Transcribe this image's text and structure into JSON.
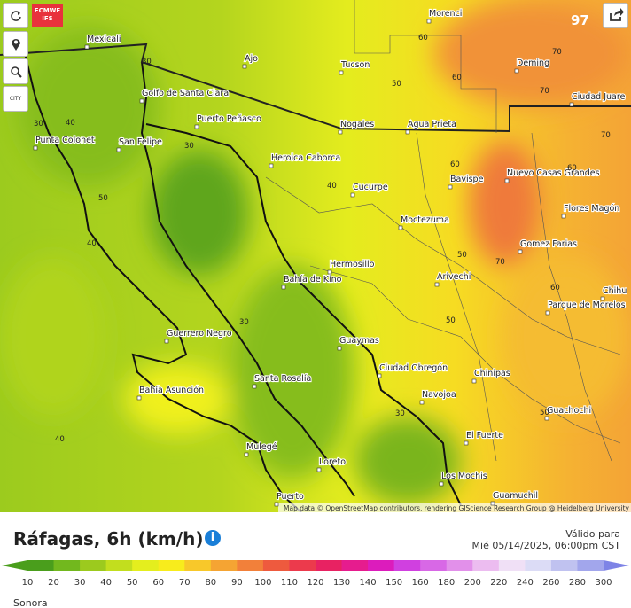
{
  "buttons": {
    "model": "ECMWF IFS",
    "city": "CITY"
  },
  "map": {
    "cities": [
      "Mexicali",
      "Tucson",
      "Ajo",
      "Morenci",
      "Deming",
      "Ciudad Juare",
      "Golfo de Santa Clara",
      "Puerto Peñasco",
      "Nogales",
      "Agua Prieta",
      "Punta Colonet",
      "San Felipe",
      "Heroica Caborca",
      "Bavispe",
      "Nuevo Casas Grandes",
      "Cucurpe",
      "Flores Magón",
      "Moctezuma",
      "Gomez Farias",
      "Hermosillo",
      "Bahía de Kino",
      "Arivechi",
      "Parque de Morelos",
      "Chihu",
      "Guerrero Negro",
      "Guaymas",
      "Ciudad Obregón",
      "Chinipas",
      "Bahía Asunción",
      "Santa Rosalía",
      "Navojoa",
      "Guachochi",
      "El Fuerte",
      "Mulegé",
      "Loreto",
      "Los Mochis",
      "Guamuchil",
      "Puerto"
    ],
    "contour_labels": [
      30,
      40,
      50,
      40,
      30,
      30,
      40,
      50,
      60,
      60,
      70,
      70,
      70,
      60,
      60,
      50,
      70,
      60,
      50,
      30,
      50,
      40,
      30
    ],
    "max_value": 97,
    "attribution": "Map data © OpenStreetMap contributors, rendering GIScience Research Group @ Heidelberg University"
  },
  "legend": {
    "title": "Ráfagas, 6h (km/h)",
    "valid_label": "Válido para",
    "valid_time": "Mié 05/14/2025, 06:00pm CST",
    "region": "Sonora",
    "stops": [
      {
        "value": 10,
        "color": "#4a9e1c"
      },
      {
        "value": 20,
        "color": "#72b81e"
      },
      {
        "value": 30,
        "color": "#9cca1e"
      },
      {
        "value": 40,
        "color": "#c2de1e"
      },
      {
        "value": 50,
        "color": "#e4ee1e"
      },
      {
        "value": 60,
        "color": "#f8ec1c"
      },
      {
        "value": 70,
        "color": "#f8c82a"
      },
      {
        "value": 80,
        "color": "#f5a433"
      },
      {
        "value": 90,
        "color": "#f2803a"
      },
      {
        "value": 100,
        "color": "#ee5a3e"
      },
      {
        "value": 110,
        "color": "#ec3a4c"
      },
      {
        "value": 120,
        "color": "#e82262"
      },
      {
        "value": 130,
        "color": "#e61c8e"
      },
      {
        "value": 140,
        "color": "#dc1cbc"
      },
      {
        "value": 150,
        "color": "#d040e0"
      },
      {
        "value": 160,
        "color": "#d868e6"
      },
      {
        "value": 180,
        "color": "#e290ea"
      },
      {
        "value": 200,
        "color": "#ecbcf0"
      },
      {
        "value": 220,
        "color": "#f0e0f6"
      },
      {
        "value": 240,
        "color": "#dcdcf6"
      },
      {
        "value": 260,
        "color": "#c0c2f0"
      },
      {
        "value": 280,
        "color": "#a2a6ec"
      },
      {
        "value": 300,
        "color": "#7e84e6"
      }
    ]
  }
}
